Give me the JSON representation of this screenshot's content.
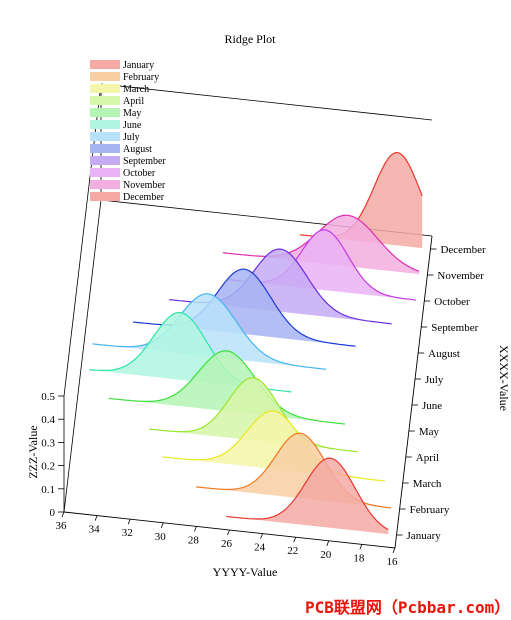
{
  "chart_data": {
    "type": "area",
    "title": "Ridge Plot",
    "xlabel": "YYYY-Value",
    "ylabel": "ZZZ-Value",
    "zlabel": "XXXX-Value",
    "x_ticks": [
      36,
      34,
      32,
      30,
      28,
      26,
      24,
      22,
      20,
      18,
      16
    ],
    "z_ticks": [
      0,
      0.1,
      0.2,
      0.3,
      0.4,
      0.5
    ],
    "z_tick_labels": [
      "0",
      "0.1",
      "0.2",
      "0.3",
      "0.4",
      "0.5"
    ],
    "xlim": [
      16,
      36
    ],
    "zlim": [
      0,
      0.5
    ],
    "categories": [
      "January",
      "February",
      "March",
      "April",
      "May",
      "June",
      "July",
      "August",
      "September",
      "October",
      "November",
      "December"
    ],
    "legend_position": "top-left",
    "series": [
      {
        "name": "January",
        "mean": 20.0,
        "sd": 1.5,
        "peak": 0.3,
        "color": "#e8392e",
        "fill": "#f4a9a4"
      },
      {
        "name": "February",
        "mean": 22.0,
        "sd": 1.5,
        "peak": 0.28,
        "color": "#f07a22",
        "fill": "#f8cfa3"
      },
      {
        "name": "March",
        "mean": 23.8,
        "sd": 1.6,
        "peak": 0.25,
        "color": "#e8e820",
        "fill": "#f4f6a8"
      },
      {
        "name": "April",
        "mean": 25.2,
        "sd": 1.5,
        "peak": 0.27,
        "color": "#9ae62a",
        "fill": "#d6f6a8"
      },
      {
        "name": "May",
        "mean": 27.0,
        "sd": 1.7,
        "peak": 0.26,
        "color": "#3ee03e",
        "fill": "#b4f4b4"
      },
      {
        "name": "June",
        "mean": 30.0,
        "sd": 1.6,
        "peak": 0.29,
        "color": "#2ee6a6",
        "fill": "#b0f6e0"
      },
      {
        "name": "July",
        "mean": 28.5,
        "sd": 1.7,
        "peak": 0.27,
        "color": "#44b4f0",
        "fill": "#b8e2fa"
      },
      {
        "name": "August",
        "mean": 26.5,
        "sd": 1.6,
        "peak": 0.28,
        "color": "#1a3ad8",
        "fill": "#a6b4f2"
      },
      {
        "name": "September",
        "mean": 24.5,
        "sd": 1.6,
        "peak": 0.27,
        "color": "#6a2ee0",
        "fill": "#c6aaf4"
      },
      {
        "name": "October",
        "mean": 22.0,
        "sd": 1.4,
        "peak": 0.26,
        "color": "#c63ae8",
        "fill": "#eab2f6"
      },
      {
        "name": "November",
        "mean": 20.8,
        "sd": 1.8,
        "peak": 0.22,
        "color": "#e02ab0",
        "fill": "#f2aede"
      },
      {
        "name": "December",
        "mean": 18.0,
        "sd": 1.4,
        "peak": 0.4,
        "color": "#e8392e",
        "fill": "#f4a9a4"
      }
    ]
  },
  "watermark": "PCB联盟网（Pcbbar.com）"
}
